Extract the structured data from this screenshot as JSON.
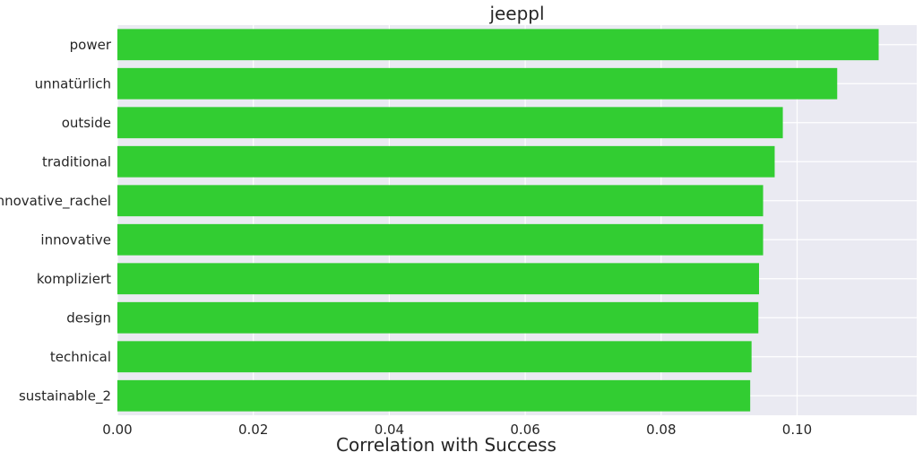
{
  "chart_data": {
    "type": "bar",
    "orientation": "horizontal",
    "title": "jeeppl",
    "xlabel": "Correlation with Success",
    "ylabel": "",
    "categories": [
      "power",
      "unnatürlich",
      "outside",
      "traditional",
      "innovative_rachel",
      "innovative",
      "kompliziert",
      "design",
      "technical",
      "sustainable_2"
    ],
    "values": [
      0.112,
      0.1059,
      0.0979,
      0.0967,
      0.095,
      0.095,
      0.0944,
      0.0943,
      0.0933,
      0.0931
    ],
    "xlim": [
      0,
      0.1176
    ],
    "xticks": [
      "0.00",
      "0.02",
      "0.04",
      "0.06",
      "0.08",
      "0.10"
    ],
    "grid": true,
    "legend": "none",
    "colors": {
      "bar": "#32cd32",
      "plot_background": "#eaeaf2",
      "grid": "#ffffff"
    }
  }
}
